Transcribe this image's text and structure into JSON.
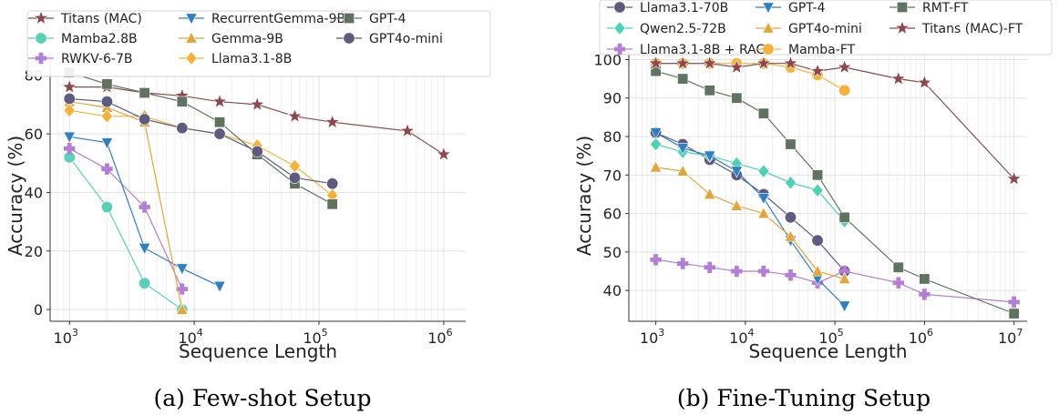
{
  "chart_data": [
    {
      "type": "line",
      "caption": "(a) Few-shot Setup",
      "xlabel": "Sequence Length",
      "ylabel": "Accuracy (%)",
      "xscale": "log",
      "xlim": [
        700,
        1500000
      ],
      "ylim": [
        -4,
        88
      ],
      "xticks": [
        1000,
        10000,
        100000,
        1000000
      ],
      "xtick_labels": [
        [
          "10",
          "3"
        ],
        [
          "10",
          "4"
        ],
        [
          "10",
          "5"
        ],
        [
          "10",
          "6"
        ]
      ],
      "yticks": [
        0,
        20,
        40,
        60,
        80
      ],
      "ytick_labels": [
        "0",
        "20",
        "40",
        "60",
        "80"
      ],
      "grid": true,
      "legend_position": "top",
      "legend_columns": 3,
      "series": [
        {
          "name": "Titans (MAC)",
          "color": "#8c4a4e",
          "marker": "star",
          "x": [
            1000,
            2000,
            4000,
            8000,
            16000,
            32000,
            64000,
            128000,
            512000,
            1000000
          ],
          "y": [
            76,
            76,
            74,
            73,
            71,
            70,
            66,
            64,
            61,
            53
          ]
        },
        {
          "name": "Mamba2.8B",
          "color": "#5ccfba",
          "marker": "circle",
          "x": [
            1000,
            2000,
            4000,
            8000
          ],
          "y": [
            52,
            35,
            9,
            0
          ]
        },
        {
          "name": "RWKV-6-7B",
          "color": "#b27fd4",
          "marker": "plus",
          "x": [
            1000,
            2000,
            4000,
            8000
          ],
          "y": [
            55,
            48,
            35,
            7
          ]
        },
        {
          "name": "RecurrentGemma-9B",
          "color": "#2f7fc1",
          "marker": "triangle-down",
          "x": [
            1000,
            2000,
            4000,
            8000,
            16000
          ],
          "y": [
            59,
            57,
            21,
            14,
            8
          ]
        },
        {
          "name": "Gemma-9B",
          "color": "#e4a53d",
          "marker": "triangle-up",
          "x": [
            1000,
            2000,
            4000,
            8000
          ],
          "y": [
            71,
            69,
            64,
            0
          ]
        },
        {
          "name": "Llama3.1-8B",
          "color": "#f5b13a",
          "marker": "diamond",
          "x": [
            1000,
            2000,
            4000,
            8000,
            16000,
            32000,
            64000,
            128000
          ],
          "y": [
            68,
            66,
            66,
            62,
            60,
            56,
            49,
            39
          ]
        },
        {
          "name": "GPT-4",
          "color": "#5f7360",
          "marker": "square",
          "x": [
            1000,
            2000,
            4000,
            8000,
            16000,
            32000,
            64000,
            128000
          ],
          "y": [
            81,
            77,
            74,
            71,
            64,
            53,
            43,
            36
          ]
        },
        {
          "name": "GPT4o-mini",
          "color": "#5e5b7e",
          "marker": "circle",
          "x": [
            1000,
            2000,
            4000,
            8000,
            16000,
            32000,
            64000,
            128000
          ],
          "y": [
            72,
            71,
            65,
            62,
            60,
            54,
            45,
            43
          ]
        }
      ]
    },
    {
      "type": "line",
      "caption": "(b) Fine-Tuning Setup",
      "xlabel": "Sequence Length",
      "ylabel": "Accuracy (%)",
      "xscale": "log",
      "xlim": [
        500,
        14000000
      ],
      "ylim": [
        32,
        102
      ],
      "xticks": [
        1000,
        10000,
        100000,
        1000000,
        10000000
      ],
      "xtick_labels": [
        [
          "10",
          "3"
        ],
        [
          "10",
          "4"
        ],
        [
          "10",
          "5"
        ],
        [
          "10",
          "6"
        ],
        [
          "10",
          "7"
        ]
      ],
      "yticks": [
        40,
        50,
        60,
        70,
        80,
        90,
        100
      ],
      "ytick_labels": [
        "40",
        "50",
        "60",
        "70",
        "80",
        "90",
        "100"
      ],
      "grid": true,
      "legend_position": "top",
      "legend_columns": 3,
      "series": [
        {
          "name": "Llama3.1-70B",
          "color": "#5e5b7e",
          "marker": "circle",
          "x": [
            1000,
            2000,
            4000,
            8000,
            16000,
            32000,
            64000,
            128000
          ],
          "y": [
            81,
            78,
            74,
            70,
            65,
            59,
            53,
            45
          ]
        },
        {
          "name": "Qwen2.5-72B",
          "color": "#4fd1b3",
          "marker": "diamond",
          "x": [
            1000,
            2000,
            4000,
            8000,
            16000,
            32000,
            64000,
            128000
          ],
          "y": [
            78,
            76,
            75,
            73,
            71,
            68,
            66,
            58
          ]
        },
        {
          "name": "Llama3.1-8B + RAG",
          "color": "#b27fd4",
          "marker": "plus",
          "x": [
            1000,
            2000,
            4000,
            8000,
            16000,
            32000,
            64000,
            128000,
            512000,
            1000000,
            10000000
          ],
          "y": [
            48,
            47,
            46,
            45,
            45,
            44,
            42,
            45,
            42,
            39,
            37
          ]
        },
        {
          "name": "GPT-4",
          "color": "#2f7fc1",
          "marker": "triangle-down",
          "x": [
            1000,
            2000,
            4000,
            8000,
            16000,
            32000,
            64000,
            128000
          ],
          "y": [
            81,
            77,
            75,
            71,
            64,
            53,
            43,
            36
          ]
        },
        {
          "name": "GPT4o-mini",
          "color": "#e4a53d",
          "marker": "triangle-up",
          "x": [
            1000,
            2000,
            4000,
            8000,
            16000,
            32000,
            64000,
            128000
          ],
          "y": [
            72,
            71,
            65,
            62,
            60,
            54,
            45,
            43
          ]
        },
        {
          "name": "Mamba-FT",
          "color": "#f5b13a",
          "marker": "circle",
          "x": [
            1000,
            2000,
            4000,
            8000,
            16000,
            32000,
            64000,
            128000
          ],
          "y": [
            99,
            99,
            99,
            99,
            99,
            98,
            96,
            92
          ]
        },
        {
          "name": "RMT-FT",
          "color": "#5f7360",
          "marker": "square",
          "x": [
            1000,
            2000,
            4000,
            8000,
            16000,
            32000,
            64000,
            128000,
            512000,
            1000000,
            10000000
          ],
          "y": [
            97,
            95,
            92,
            90,
            86,
            78,
            70,
            59,
            46,
            43,
            34
          ]
        },
        {
          "name": "Titans (MAC)-FT",
          "color": "#8c4a4e",
          "marker": "star",
          "x": [
            1000,
            2000,
            4000,
            8000,
            16000,
            32000,
            64000,
            128000,
            512000,
            1000000,
            10000000
          ],
          "y": [
            99,
            99,
            99,
            98,
            99,
            99,
            97,
            98,
            95,
            94,
            69
          ]
        }
      ]
    }
  ]
}
